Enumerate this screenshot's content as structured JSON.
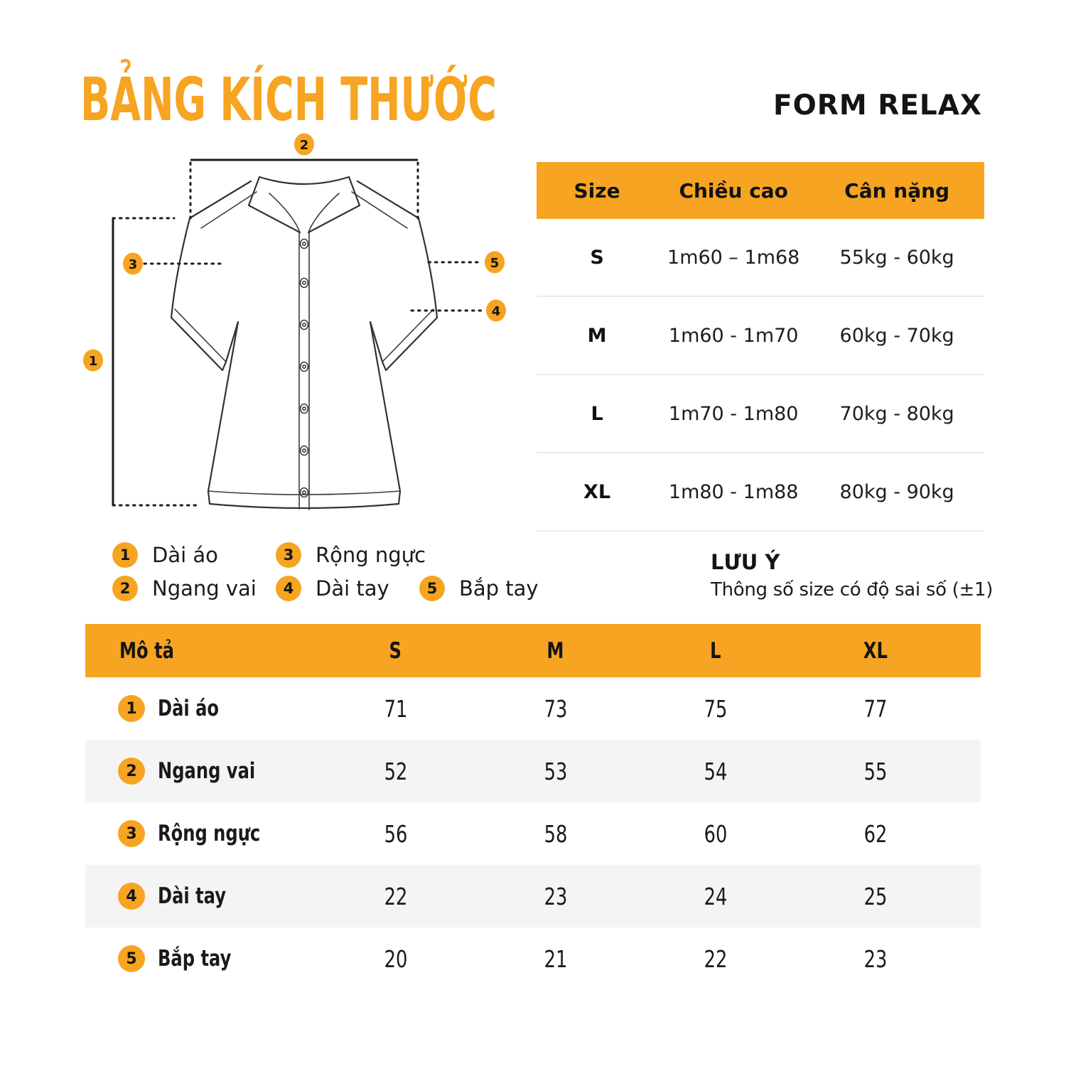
{
  "page": {
    "title": "BẢNG KÍCH THƯỚC",
    "subtitle": "FORM RELAX"
  },
  "colors": {
    "accent_orange": "#F6A422",
    "alt_row_gray": "#F4F4F4",
    "text_black": "#141414"
  },
  "diagram": {
    "markers": [
      "1",
      "2",
      "3",
      "4",
      "5"
    ]
  },
  "size_table": {
    "headers": [
      "Size",
      "Chiều cao",
      "Cân nặng"
    ],
    "rows": [
      {
        "size": "S",
        "height": "1m60 – 1m68",
        "weight": "55kg - 60kg"
      },
      {
        "size": "M",
        "height": "1m60 - 1m70",
        "weight": "60kg - 70kg"
      },
      {
        "size": "L",
        "height": "1m70 - 1m80",
        "weight": "70kg - 80kg"
      },
      {
        "size": "XL",
        "height": "1m80 - 1m88",
        "weight": "80kg - 90kg"
      }
    ]
  },
  "legend": [
    {
      "num": "1",
      "label": "Dài áo"
    },
    {
      "num": "2",
      "label": "Ngang vai"
    },
    {
      "num": "3",
      "label": "Rộng ngực"
    },
    {
      "num": "4",
      "label": "Dài tay"
    },
    {
      "num": "5",
      "label": "Bắp tay"
    }
  ],
  "note": {
    "title": "LƯU Ý",
    "text": "Thông số size có độ sai số (±1)"
  },
  "measure_table": {
    "headers": [
      "Mô tả",
      "S",
      "M",
      "L",
      "XL"
    ],
    "rows": [
      {
        "num": "1",
        "label": "Dài áo",
        "values": [
          "71",
          "73",
          "75",
          "77"
        ]
      },
      {
        "num": "2",
        "label": "Ngang vai",
        "values": [
          "52",
          "53",
          "54",
          "55"
        ]
      },
      {
        "num": "3",
        "label": "Rộng ngực",
        "values": [
          "56",
          "58",
          "60",
          "62"
        ]
      },
      {
        "num": "4",
        "label": "Dài tay",
        "values": [
          "22",
          "23",
          "24",
          "25"
        ]
      },
      {
        "num": "5",
        "label": "Bắp tay",
        "values": [
          "20",
          "21",
          "22",
          "23"
        ]
      }
    ]
  }
}
